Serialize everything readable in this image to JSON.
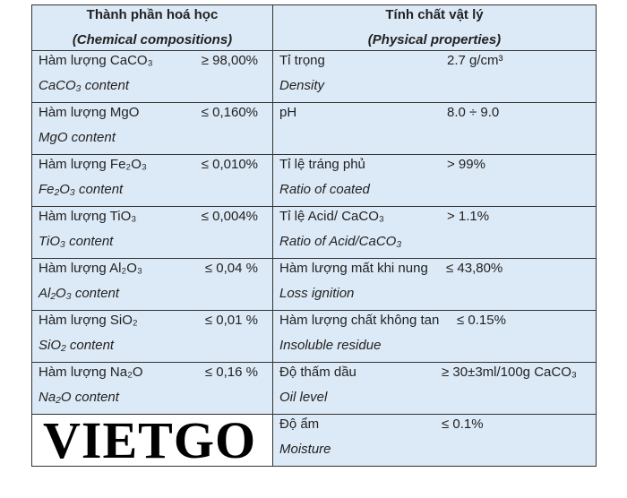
{
  "header": {
    "left": [
      "Thành phần hoá học",
      "(Chemical compositions)"
    ],
    "right": [
      "Tính chất vật lý",
      "(Physical properties)"
    ]
  },
  "rows": [
    {
      "left": {
        "name": "Hàm lượng CaCO₃",
        "value": "≥ 98,00%",
        "english": "CaCO₃ content"
      },
      "right": {
        "name": "Tỉ trọng",
        "value": "2.7 g/cm³",
        "english": "Density"
      }
    },
    {
      "left": {
        "name": "Hàm lượng MgO",
        "value": "≤ 0,160%",
        "english": "MgO content"
      },
      "right": {
        "name": "pH",
        "value": "8.0 ÷ 9.0"
      }
    },
    {
      "left": {
        "name": "Hàm lượng Fe₂O₃",
        "value": "≤ 0,010%",
        "english": "Fe₂O₃ content"
      },
      "right": {
        "name": "Tỉ lệ tráng phủ",
        "value": "> 99%",
        "english": "Ratio of coated"
      }
    },
    {
      "left": {
        "name": "Hàm lượng TiO₃",
        "value": "≤ 0,004%",
        "english": "TiO₃ content"
      },
      "right": {
        "name": "Tỉ lệ Acid/ CaCO₃",
        "value": "> 1.1%",
        "english": "Ratio of Acid/CaCO₃"
      }
    },
    {
      "left": {
        "name": "Hàm lượng Al₂O₃",
        "value": "≤ 0,04 %",
        "english": "Al₂O₃ content"
      },
      "right": {
        "name": "Hàm lượng mất khi nung",
        "value": "≤ 43,80%",
        "english": "Loss ignition"
      }
    },
    {
      "left": {
        "name": "Hàm lượng SiO₂",
        "value": "≤ 0,01 %",
        "english": "SiO₂ content"
      },
      "right": {
        "name": "Hàm lượng chất không tan",
        "value": "≤ 0.15%",
        "english": "Insoluble residue"
      }
    },
    {
      "left": {
        "name": "Hàm lượng Na₂O",
        "value": "≤ 0,16 %",
        "english": "Na₂O content"
      },
      "right": {
        "name": "Độ thấm dầu",
        "value": "≥ 30±3ml/100g CaCO₃",
        "english": "Oil level"
      }
    },
    {
      "left": {
        "logo": "VIETGO"
      },
      "right": {
        "name": "Độ ẩm",
        "value": "≤ 0.1%",
        "english": "Moisture"
      }
    }
  ]
}
